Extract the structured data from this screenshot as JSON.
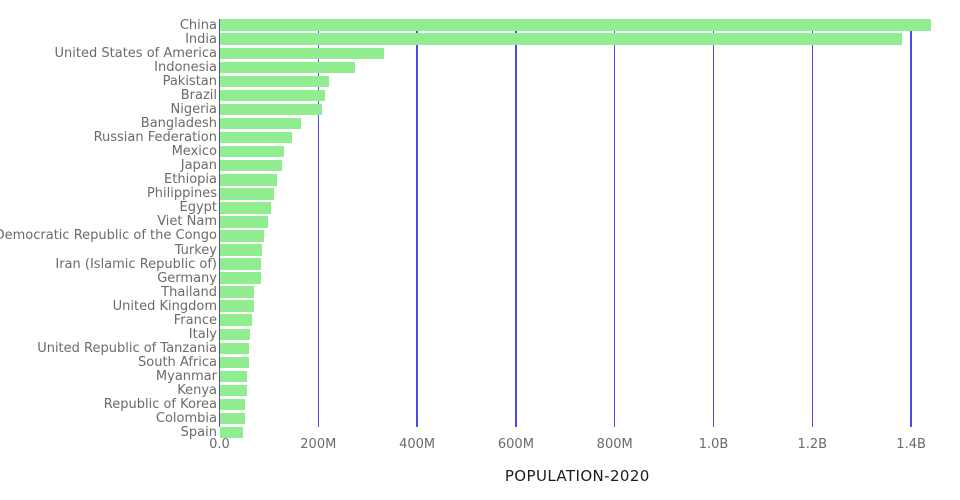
{
  "chart_data": {
    "type": "bar",
    "orientation": "horizontal",
    "title": "",
    "xlabel": "POPULATION-2020",
    "ylabel": "",
    "categories": [
      "China",
      "India",
      "United States of America",
      "Indonesia",
      "Pakistan",
      "Brazil",
      "Nigeria",
      "Bangladesh",
      "Russian Federation",
      "Mexico",
      "Japan",
      "Ethiopia",
      "Philippines",
      "Egypt",
      "Viet Nam",
      "Democratic Republic of the Congo",
      "Turkey",
      "Iran (Islamic Republic of)",
      "Germany",
      "Thailand",
      "United Kingdom",
      "France",
      "Italy",
      "United Republic of Tanzania",
      "South Africa",
      "Myanmar",
      "Kenya",
      "Republic of Korea",
      "Colombia",
      "Spain"
    ],
    "values_unit": "millions",
    "values": [
      1439.3,
      1380.0,
      331.0,
      273.5,
      220.9,
      212.6,
      206.1,
      164.7,
      145.9,
      128.9,
      126.5,
      115.0,
      109.6,
      102.3,
      97.3,
      89.6,
      84.3,
      84.0,
      83.8,
      69.8,
      67.9,
      65.3,
      60.5,
      59.7,
      59.3,
      54.4,
      53.8,
      51.3,
      50.9,
      46.8
    ],
    "x_ticks": {
      "labels": [
        "0.0",
        "200M",
        "400M",
        "600M",
        "800M",
        "1.0B",
        "1.2B",
        "1.4B"
      ],
      "values": [
        0,
        200,
        400,
        600,
        800,
        1000,
        1200,
        1400
      ]
    },
    "xlim": [
      0,
      1500
    ],
    "grid": "vertical",
    "legend": "none",
    "colors": {
      "bar": "#90EE90",
      "gridline": "#4a4ae8",
      "label_text": "#6b6b6b",
      "tick_text": "#6b6b6b",
      "title_text": "#1c1c1c",
      "background": "#ffffff"
    }
  }
}
